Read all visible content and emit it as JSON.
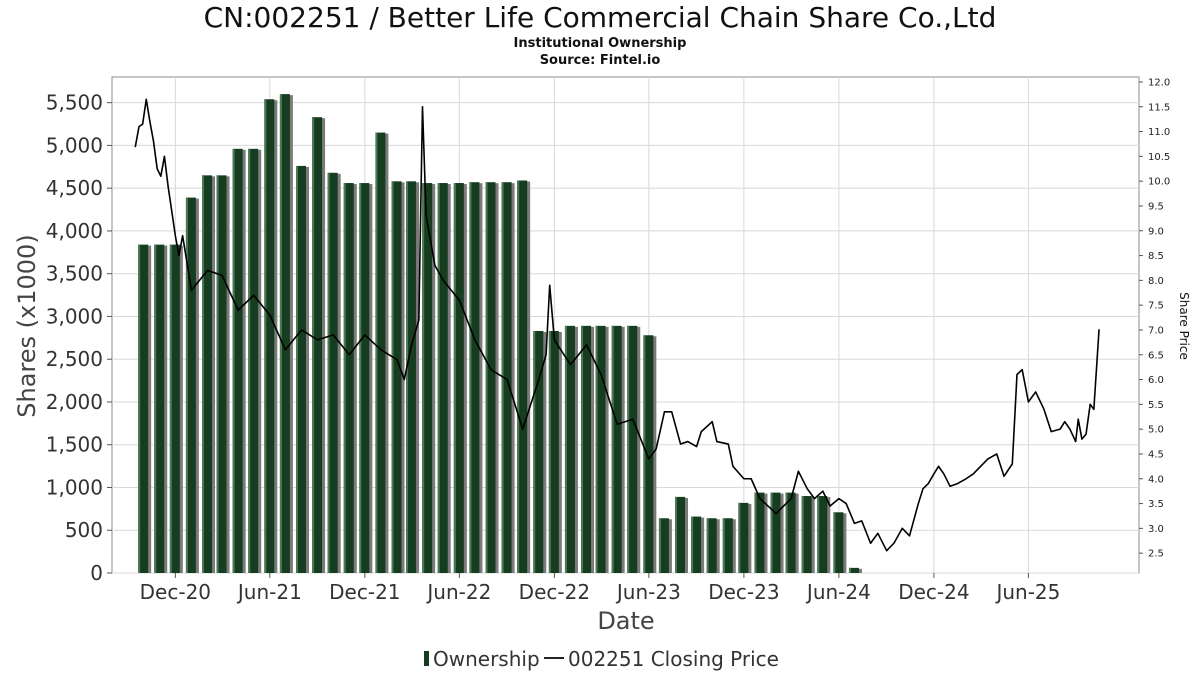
{
  "colors": {
    "bar": "#173d21",
    "bar_highlight": "#4a7a55",
    "bar_shadow": "#7b7b7b",
    "line": "#000000",
    "grid": "#d8d8d8",
    "plot_border": "#8c8c8c"
  },
  "chart_data": {
    "type": "bar",
    "title": "CN:002251 / Better Life Commercial Chain Share Co.,Ltd",
    "subtitle_lines": [
      "Institutional Ownership",
      "Source: Fintel.io"
    ],
    "xlabel": "Date",
    "ylabel": "Shares (x1000)",
    "ylabel_right": "Share Price",
    "legend": {
      "ownership": "Ownership",
      "price": "002251 Closing Price",
      "position": "bottom-center"
    },
    "grid": true,
    "ylim": [
      0,
      5800
    ],
    "y2lim": [
      2.1,
      12.1
    ],
    "xlim": [
      "2020-08-01",
      "2025-12-31"
    ],
    "x_ticks": [
      {
        "date": "2020-12-01",
        "label": "Dec-20"
      },
      {
        "date": "2021-06-01",
        "label": "Jun-21"
      },
      {
        "date": "2021-12-01",
        "label": "Dec-21"
      },
      {
        "date": "2022-06-01",
        "label": "Jun-22"
      },
      {
        "date": "2022-12-01",
        "label": "Dec-22"
      },
      {
        "date": "2023-06-01",
        "label": "Jun-23"
      },
      {
        "date": "2023-12-01",
        "label": "Dec-23"
      },
      {
        "date": "2024-06-01",
        "label": "Jun-24"
      },
      {
        "date": "2024-12-01",
        "label": "Dec-24"
      },
      {
        "date": "2025-06-01",
        "label": "Jun-25"
      }
    ],
    "left_ticks": [
      {
        "value": 0,
        "label": "0"
      },
      {
        "value": 500,
        "label": "500"
      },
      {
        "value": 1000,
        "label": "1,000"
      },
      {
        "value": 1500,
        "label": "1,500"
      },
      {
        "value": 2000,
        "label": "2,000"
      },
      {
        "value": 2500,
        "label": "2,500"
      },
      {
        "value": 3000,
        "label": "3,000"
      },
      {
        "value": 3500,
        "label": "3,500"
      },
      {
        "value": 4000,
        "label": "4,000"
      },
      {
        "value": 4500,
        "label": "4,500"
      },
      {
        "value": 5000,
        "label": "5,000"
      },
      {
        "value": 5500,
        "label": "5,500"
      }
    ],
    "right_ticks": [
      {
        "value": 2.5,
        "label": "2.5"
      },
      {
        "value": 3.0,
        "label": "3.0"
      },
      {
        "value": 3.5,
        "label": "3.5"
      },
      {
        "value": 4.0,
        "label": "4.0"
      },
      {
        "value": 4.5,
        "label": "4.5"
      },
      {
        "value": 5.0,
        "label": "5.0"
      },
      {
        "value": 5.5,
        "label": "5.5"
      },
      {
        "value": 6.0,
        "label": "6.0"
      },
      {
        "value": 6.5,
        "label": "6.5"
      },
      {
        "value": 7.0,
        "label": "7.0"
      },
      {
        "value": 7.5,
        "label": "7.5"
      },
      {
        "value": 8.0,
        "label": "8.0"
      },
      {
        "value": 8.5,
        "label": "8.5"
      },
      {
        "value": 9.0,
        "label": "9.0"
      },
      {
        "value": 9.5,
        "label": "9.5"
      },
      {
        "value": 10.0,
        "label": "10.0"
      },
      {
        "value": 10.5,
        "label": "10.5"
      },
      {
        "value": 11.0,
        "label": "11.0"
      },
      {
        "value": 11.5,
        "label": "11.5"
      },
      {
        "value": 12.0,
        "label": "12.0"
      }
    ],
    "ownership_series": [
      {
        "date": "2020-09-30",
        "value": 3840
      },
      {
        "date": "2020-10-31",
        "value": 3840
      },
      {
        "date": "2020-11-30",
        "value": 3840
      },
      {
        "date": "2020-12-31",
        "value": 4390
      },
      {
        "date": "2021-01-31",
        "value": 4650
      },
      {
        "date": "2021-02-28",
        "value": 4650
      },
      {
        "date": "2021-03-31",
        "value": 4960
      },
      {
        "date": "2021-04-30",
        "value": 4960
      },
      {
        "date": "2021-05-31",
        "value": 5540
      },
      {
        "date": "2021-06-30",
        "value": 5600
      },
      {
        "date": "2021-07-31",
        "value": 4760
      },
      {
        "date": "2021-08-31",
        "value": 5330
      },
      {
        "date": "2021-09-30",
        "value": 4680
      },
      {
        "date": "2021-10-31",
        "value": 4560
      },
      {
        "date": "2021-11-30",
        "value": 4560
      },
      {
        "date": "2021-12-31",
        "value": 5150
      },
      {
        "date": "2022-01-31",
        "value": 4580
      },
      {
        "date": "2022-02-28",
        "value": 4580
      },
      {
        "date": "2022-03-31",
        "value": 4560
      },
      {
        "date": "2022-04-30",
        "value": 4560
      },
      {
        "date": "2022-05-31",
        "value": 4560
      },
      {
        "date": "2022-06-30",
        "value": 4570
      },
      {
        "date": "2022-07-31",
        "value": 4570
      },
      {
        "date": "2022-08-31",
        "value": 4570
      },
      {
        "date": "2022-09-30",
        "value": 4590
      },
      {
        "date": "2022-10-31",
        "value": 2830
      },
      {
        "date": "2022-11-30",
        "value": 2830
      },
      {
        "date": "2022-12-31",
        "value": 2890
      },
      {
        "date": "2023-01-31",
        "value": 2890
      },
      {
        "date": "2023-02-28",
        "value": 2890
      },
      {
        "date": "2023-03-31",
        "value": 2890
      },
      {
        "date": "2023-04-30",
        "value": 2890
      },
      {
        "date": "2023-05-31",
        "value": 2780
      },
      {
        "date": "2023-06-30",
        "value": 640
      },
      {
        "date": "2023-07-31",
        "value": 890
      },
      {
        "date": "2023-08-31",
        "value": 660
      },
      {
        "date": "2023-09-30",
        "value": 640
      },
      {
        "date": "2023-10-31",
        "value": 640
      },
      {
        "date": "2023-11-30",
        "value": 820
      },
      {
        "date": "2023-12-31",
        "value": 940
      },
      {
        "date": "2024-01-31",
        "value": 940
      },
      {
        "date": "2024-02-29",
        "value": 940
      },
      {
        "date": "2024-03-31",
        "value": 900
      },
      {
        "date": "2024-04-30",
        "value": 900
      },
      {
        "date": "2024-05-31",
        "value": 710
      },
      {
        "date": "2024-06-30",
        "value": 60
      }
    ],
    "price_series": [
      {
        "date": "2020-09-15",
        "value": 10.7
      },
      {
        "date": "2020-09-22",
        "value": 11.1
      },
      {
        "date": "2020-09-29",
        "value": 11.15
      },
      {
        "date": "2020-10-06",
        "value": 11.65
      },
      {
        "date": "2020-10-13",
        "value": 11.2
      },
      {
        "date": "2020-10-20",
        "value": 10.8
      },
      {
        "date": "2020-10-27",
        "value": 10.25
      },
      {
        "date": "2020-11-03",
        "value": 10.1
      },
      {
        "date": "2020-11-10",
        "value": 10.5
      },
      {
        "date": "2020-11-17",
        "value": 9.9
      },
      {
        "date": "2020-11-24",
        "value": 9.4
      },
      {
        "date": "2020-12-01",
        "value": 8.9
      },
      {
        "date": "2020-12-08",
        "value": 8.5
      },
      {
        "date": "2020-12-15",
        "value": 8.9
      },
      {
        "date": "2021-01-01",
        "value": 7.8
      },
      {
        "date": "2021-02-01",
        "value": 8.2
      },
      {
        "date": "2021-03-01",
        "value": 8.1
      },
      {
        "date": "2021-04-01",
        "value": 7.4
      },
      {
        "date": "2021-05-01",
        "value": 7.7
      },
      {
        "date": "2021-06-01",
        "value": 7.3
      },
      {
        "date": "2021-07-01",
        "value": 6.6
      },
      {
        "date": "2021-08-01",
        "value": 7.0
      },
      {
        "date": "2021-09-01",
        "value": 6.8
      },
      {
        "date": "2021-10-01",
        "value": 6.9
      },
      {
        "date": "2021-11-01",
        "value": 6.5
      },
      {
        "date": "2021-12-01",
        "value": 6.9
      },
      {
        "date": "2022-01-01",
        "value": 6.6
      },
      {
        "date": "2022-02-01",
        "value": 6.4
      },
      {
        "date": "2022-02-15",
        "value": 6.0
      },
      {
        "date": "2022-03-01",
        "value": 6.7
      },
      {
        "date": "2022-03-15",
        "value": 7.2
      },
      {
        "date": "2022-03-22",
        "value": 11.5
      },
      {
        "date": "2022-03-29",
        "value": 9.3
      },
      {
        "date": "2022-04-15",
        "value": 8.3
      },
      {
        "date": "2022-05-01",
        "value": 8.0
      },
      {
        "date": "2022-06-01",
        "value": 7.6
      },
      {
        "date": "2022-07-01",
        "value": 6.8
      },
      {
        "date": "2022-08-01",
        "value": 6.2
      },
      {
        "date": "2022-09-01",
        "value": 6.0
      },
      {
        "date": "2022-10-01",
        "value": 5.0
      },
      {
        "date": "2022-11-01",
        "value": 6.0
      },
      {
        "date": "2022-11-15",
        "value": 6.5
      },
      {
        "date": "2022-11-22",
        "value": 7.9
      },
      {
        "date": "2022-12-01",
        "value": 6.8
      },
      {
        "date": "2023-01-01",
        "value": 6.3
      },
      {
        "date": "2023-02-01",
        "value": 6.7
      },
      {
        "date": "2023-03-01",
        "value": 6.1
      },
      {
        "date": "2023-04-01",
        "value": 5.1
      },
      {
        "date": "2023-05-01",
        "value": 5.2
      },
      {
        "date": "2023-06-01",
        "value": 4.4
      },
      {
        "date": "2023-06-15",
        "value": 4.6
      },
      {
        "date": "2023-07-01",
        "value": 5.35
      },
      {
        "date": "2023-07-15",
        "value": 5.35
      },
      {
        "date": "2023-08-01",
        "value": 4.7
      },
      {
        "date": "2023-08-15",
        "value": 4.75
      },
      {
        "date": "2023-09-01",
        "value": 4.65
      },
      {
        "date": "2023-09-10",
        "value": 4.95
      },
      {
        "date": "2023-10-01",
        "value": 5.15
      },
      {
        "date": "2023-10-10",
        "value": 4.75
      },
      {
        "date": "2023-11-01",
        "value": 4.7
      },
      {
        "date": "2023-11-10",
        "value": 4.25
      },
      {
        "date": "2023-12-01",
        "value": 4.0
      },
      {
        "date": "2023-12-15",
        "value": 4.0
      },
      {
        "date": "2024-01-01",
        "value": 3.6
      },
      {
        "date": "2024-02-01",
        "value": 3.3
      },
      {
        "date": "2024-03-01",
        "value": 3.6
      },
      {
        "date": "2024-03-15",
        "value": 4.15
      },
      {
        "date": "2024-04-01",
        "value": 3.8
      },
      {
        "date": "2024-04-15",
        "value": 3.6
      },
      {
        "date": "2024-05-01",
        "value": 3.75
      },
      {
        "date": "2024-05-15",
        "value": 3.45
      },
      {
        "date": "2024-06-01",
        "value": 3.6
      },
      {
        "date": "2024-06-15",
        "value": 3.5
      },
      {
        "date": "2024-07-01",
        "value": 3.1
      },
      {
        "date": "2024-07-15",
        "value": 3.15
      },
      {
        "date": "2024-08-01",
        "value": 2.7
      },
      {
        "date": "2024-08-15",
        "value": 2.9
      },
      {
        "date": "2024-09-01",
        "value": 2.55
      },
      {
        "date": "2024-09-15",
        "value": 2.7
      },
      {
        "date": "2024-10-01",
        "value": 3.0
      },
      {
        "date": "2024-10-15",
        "value": 2.85
      },
      {
        "date": "2024-11-01",
        "value": 3.5
      },
      {
        "date": "2024-11-10",
        "value": 3.8
      },
      {
        "date": "2024-11-20",
        "value": 3.9
      },
      {
        "date": "2024-12-01",
        "value": 4.1
      },
      {
        "date": "2024-12-10",
        "value": 4.25
      },
      {
        "date": "2024-12-20",
        "value": 4.1
      },
      {
        "date": "2025-01-01",
        "value": 3.85
      },
      {
        "date": "2025-01-15",
        "value": 3.9
      },
      {
        "date": "2025-02-01",
        "value": 4.0
      },
      {
        "date": "2025-02-15",
        "value": 4.1
      },
      {
        "date": "2025-03-01",
        "value": 4.25
      },
      {
        "date": "2025-03-15",
        "value": 4.4
      },
      {
        "date": "2025-04-01",
        "value": 4.5
      },
      {
        "date": "2025-04-15",
        "value": 4.05
      },
      {
        "date": "2025-05-01",
        "value": 4.3
      },
      {
        "date": "2025-05-10",
        "value": 6.1
      },
      {
        "date": "2025-05-20",
        "value": 6.2
      },
      {
        "date": "2025-06-01",
        "value": 5.55
      },
      {
        "date": "2025-06-15",
        "value": 5.75
      },
      {
        "date": "2025-07-01",
        "value": 5.4
      },
      {
        "date": "2025-07-15",
        "value": 4.95
      },
      {
        "date": "2025-08-01",
        "value": 5.0
      },
      {
        "date": "2025-08-10",
        "value": 5.15
      },
      {
        "date": "2025-08-20",
        "value": 5.0
      },
      {
        "date": "2025-08-31",
        "value": 4.75
      },
      {
        "date": "2025-09-05",
        "value": 5.2
      },
      {
        "date": "2025-09-12",
        "value": 4.8
      },
      {
        "date": "2025-09-20",
        "value": 4.9
      },
      {
        "date": "2025-09-28",
        "value": 5.5
      },
      {
        "date": "2025-10-05",
        "value": 5.4
      },
      {
        "date": "2025-10-15",
        "value": 7.0
      }
    ]
  }
}
